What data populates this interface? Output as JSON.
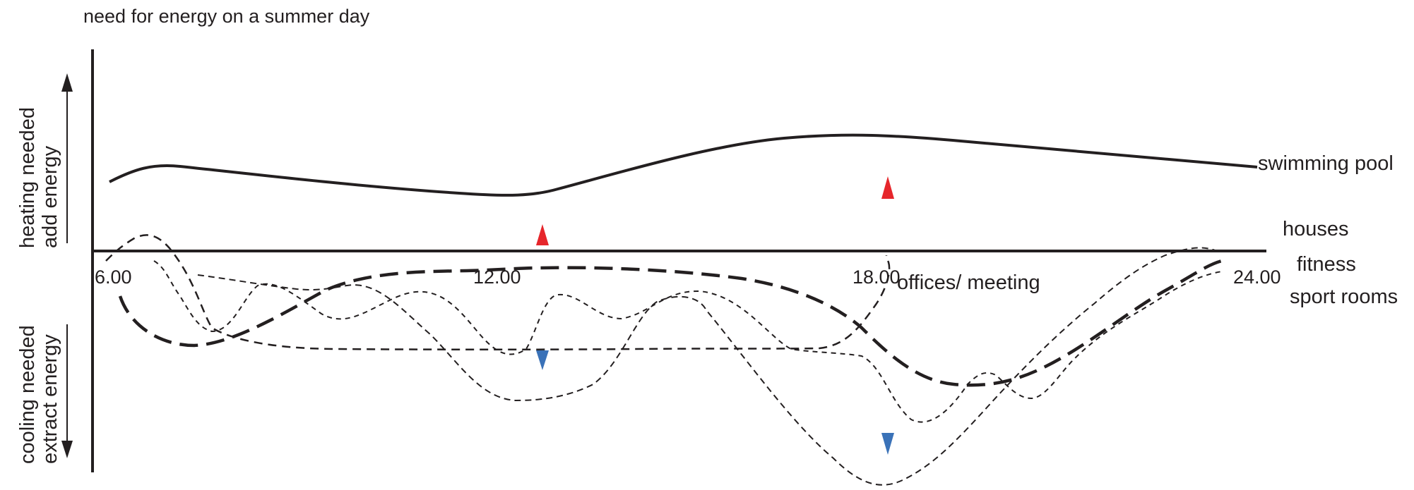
{
  "title": "need for energy on a summer day",
  "y_axis": {
    "heating_line1": "heating needed",
    "heating_line2": "add energy",
    "cooling_line1": "cooling needed",
    "cooling_line2": "extract energy"
  },
  "x_ticks": [
    "6.00",
    "12.00",
    "18.00",
    "24.00"
  ],
  "series_labels": {
    "swimming_pool": "swimming pool",
    "houses": "houses",
    "fitness": "fitness",
    "sport_rooms": "sport rooms",
    "offices": "offices/ meeting"
  },
  "colors": {
    "ink": "#231f20",
    "heating_arrow": "#e6262b",
    "cooling_arrow": "#3a72b8"
  }
}
